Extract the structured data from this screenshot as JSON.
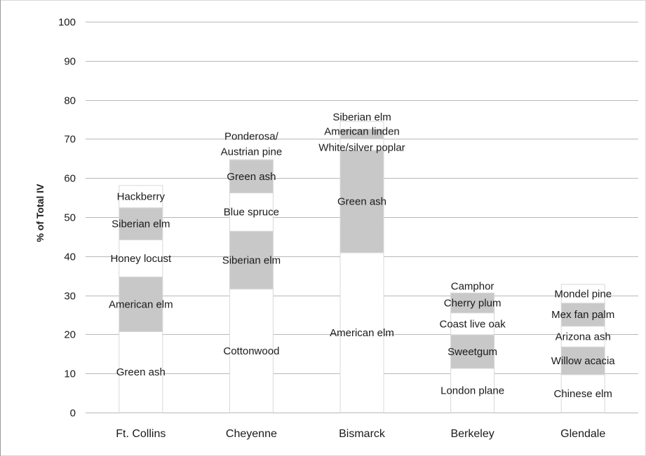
{
  "chart_data": {
    "type": "bar",
    "stacked": true,
    "ylabel": "% of Total IV",
    "xlabel": "",
    "title": "",
    "ylim": [
      0,
      100
    ],
    "yticks": [
      0,
      10,
      20,
      30,
      40,
      50,
      60,
      70,
      80,
      90,
      100
    ],
    "grid": true,
    "legend": "none",
    "colors": {
      "white_segment": "#ffffff",
      "gray_segment": "#c8c8c8",
      "gridline": "#b8b8b8",
      "outline": "#d8d8d8"
    },
    "categories": [
      "Ft. Collins",
      "Cheyenne",
      "Bismarck",
      "Berkeley",
      "Glendale"
    ],
    "stacks": [
      {
        "category": "Ft. Collins",
        "segments": [
          {
            "label": "Green ash",
            "value": 20.7,
            "shade": "white"
          },
          {
            "label": "American elm",
            "value": 14.0,
            "shade": "gray"
          },
          {
            "label": "Honey locust",
            "value": 9.5,
            "shade": "white"
          },
          {
            "label": "Siberian elm",
            "value": 8.2,
            "shade": "gray"
          },
          {
            "label": "Hackberry",
            "value": 5.7,
            "shade": "white"
          }
        ]
      },
      {
        "category": "Cheyenne",
        "segments": [
          {
            "label": "Cottonwood",
            "value": 31.6,
            "shade": "white"
          },
          {
            "label": "Siberian elm",
            "value": 14.8,
            "shade": "gray"
          },
          {
            "label": "Blue spruce",
            "value": 9.8,
            "shade": "white"
          },
          {
            "label": "Green ash",
            "value": 8.4,
            "shade": "gray"
          },
          {
            "label": "Ponderosa/\nAustrian pine",
            "value": 0.1,
            "shade": "white"
          }
        ]
      },
      {
        "category": "Bismarck",
        "segments": [
          {
            "label": "American elm",
            "value": 40.9,
            "shade": "white"
          },
          {
            "label": "Green ash",
            "value": 26.2,
            "shade": "gray"
          },
          {
            "label": "White/silver poplar",
            "value": 2.9,
            "shade": "white"
          },
          {
            "label": "American linden",
            "value": 2.5,
            "shade": "gray"
          },
          {
            "label": "Siberian elm",
            "value": 2.0,
            "shade": "white"
          }
        ]
      },
      {
        "category": "Berkeley",
        "segments": [
          {
            "label": "London plane",
            "value": 11.3,
            "shade": "white"
          },
          {
            "label": "Sweetgum",
            "value": 8.6,
            "shade": "gray"
          },
          {
            "label": "Coast live oak",
            "value": 5.6,
            "shade": "white"
          },
          {
            "label": "Cherry plum",
            "value": 5.1,
            "shade": "gray"
          },
          {
            "label": "Camphor",
            "value": 0.0,
            "shade": "white"
          }
        ]
      },
      {
        "category": "Glendale",
        "segments": [
          {
            "label": "Chinese elm",
            "value": 9.7,
            "shade": "white"
          },
          {
            "label": "Willow acacia",
            "value": 7.1,
            "shade": "gray"
          },
          {
            "label": "Arizona ash",
            "value": 5.3,
            "shade": "white"
          },
          {
            "label": "Mex fan palm",
            "value": 5.9,
            "shade": "gray"
          },
          {
            "label": "Mondel pine",
            "value": 4.8,
            "shade": "white"
          }
        ]
      }
    ]
  }
}
